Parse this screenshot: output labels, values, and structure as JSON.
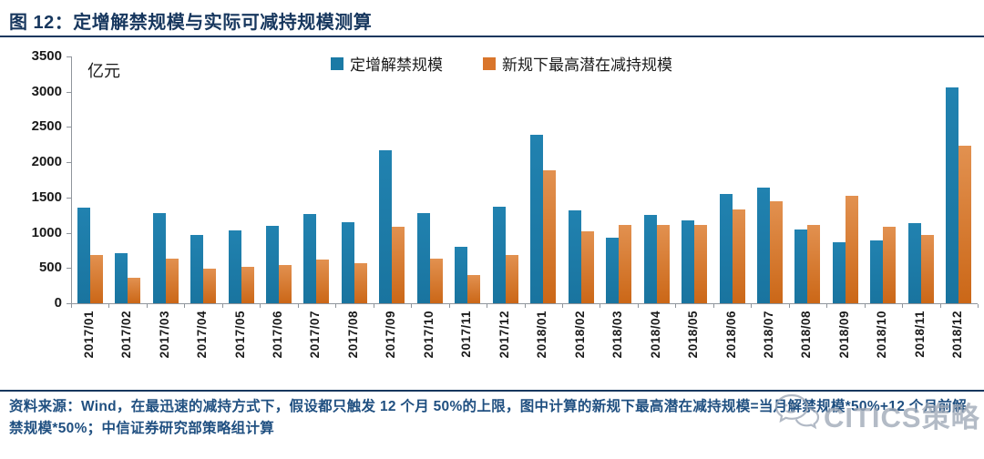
{
  "header": {
    "title": "图 12：定增解禁规模与实际可减持规模测算"
  },
  "chart_data": {
    "type": "bar",
    "title": "定增解禁规模与实际可减持规模测算",
    "unit_label": "亿元",
    "xlabel": "",
    "ylabel": "亿元",
    "ylim": [
      0,
      3500
    ],
    "yticks": [
      0,
      500,
      1000,
      1500,
      2000,
      2500,
      3000,
      3500
    ],
    "grid": false,
    "legend_position": "top",
    "categories": [
      "2017/01",
      "2017/02",
      "2017/03",
      "2017/04",
      "2017/05",
      "2017/06",
      "2017/07",
      "2017/08",
      "2017/09",
      "2017/10",
      "2017/11",
      "2017/12",
      "2018/01",
      "2018/02",
      "2018/03",
      "2018/04",
      "2018/05",
      "2018/06",
      "2018/07",
      "2018/08",
      "2018/09",
      "2018/10",
      "2018/11",
      "2018/12"
    ],
    "series": [
      {
        "name": "定增解禁规模",
        "color": "#1B7AA5",
        "values": [
          1360,
          710,
          1280,
          975,
          1035,
          1100,
          1260,
          1150,
          2170,
          1275,
          800,
          1370,
          2390,
          1320,
          930,
          1250,
          1170,
          1550,
          1640,
          1045,
          865,
          895,
          1140,
          3060
        ]
      },
      {
        "name": "新规下最高潜在减持规模",
        "color": "#D9752B",
        "values": [
          680,
          360,
          635,
          490,
          520,
          545,
          620,
          570,
          1090,
          635,
          405,
          685,
          1880,
          1025,
          1110,
          1110,
          1115,
          1335,
          1450,
          1105,
          1520,
          1090,
          975,
          2230
        ]
      }
    ]
  },
  "footer": {
    "source_text": "资料来源：Wind，在最迅速的减持方式下，假设都只触发 12 个月 50%的上限，图中计算的新规下最高潜在减持规模=当月解禁规模*50%+12 个月前解禁规模*50%；中信证券研究部策略组计算"
  },
  "watermark": {
    "label": "CITICS策略",
    "icon": "wechat-bubbles-icon"
  },
  "colors": {
    "title_navy": "#17375E",
    "footer_blue": "#1F4F80",
    "bar_blue": "#1B7AA5",
    "bar_orange": "#D9752B",
    "axis_gray": "#8F959C",
    "watermark_gray": "#9EA8B6"
  }
}
